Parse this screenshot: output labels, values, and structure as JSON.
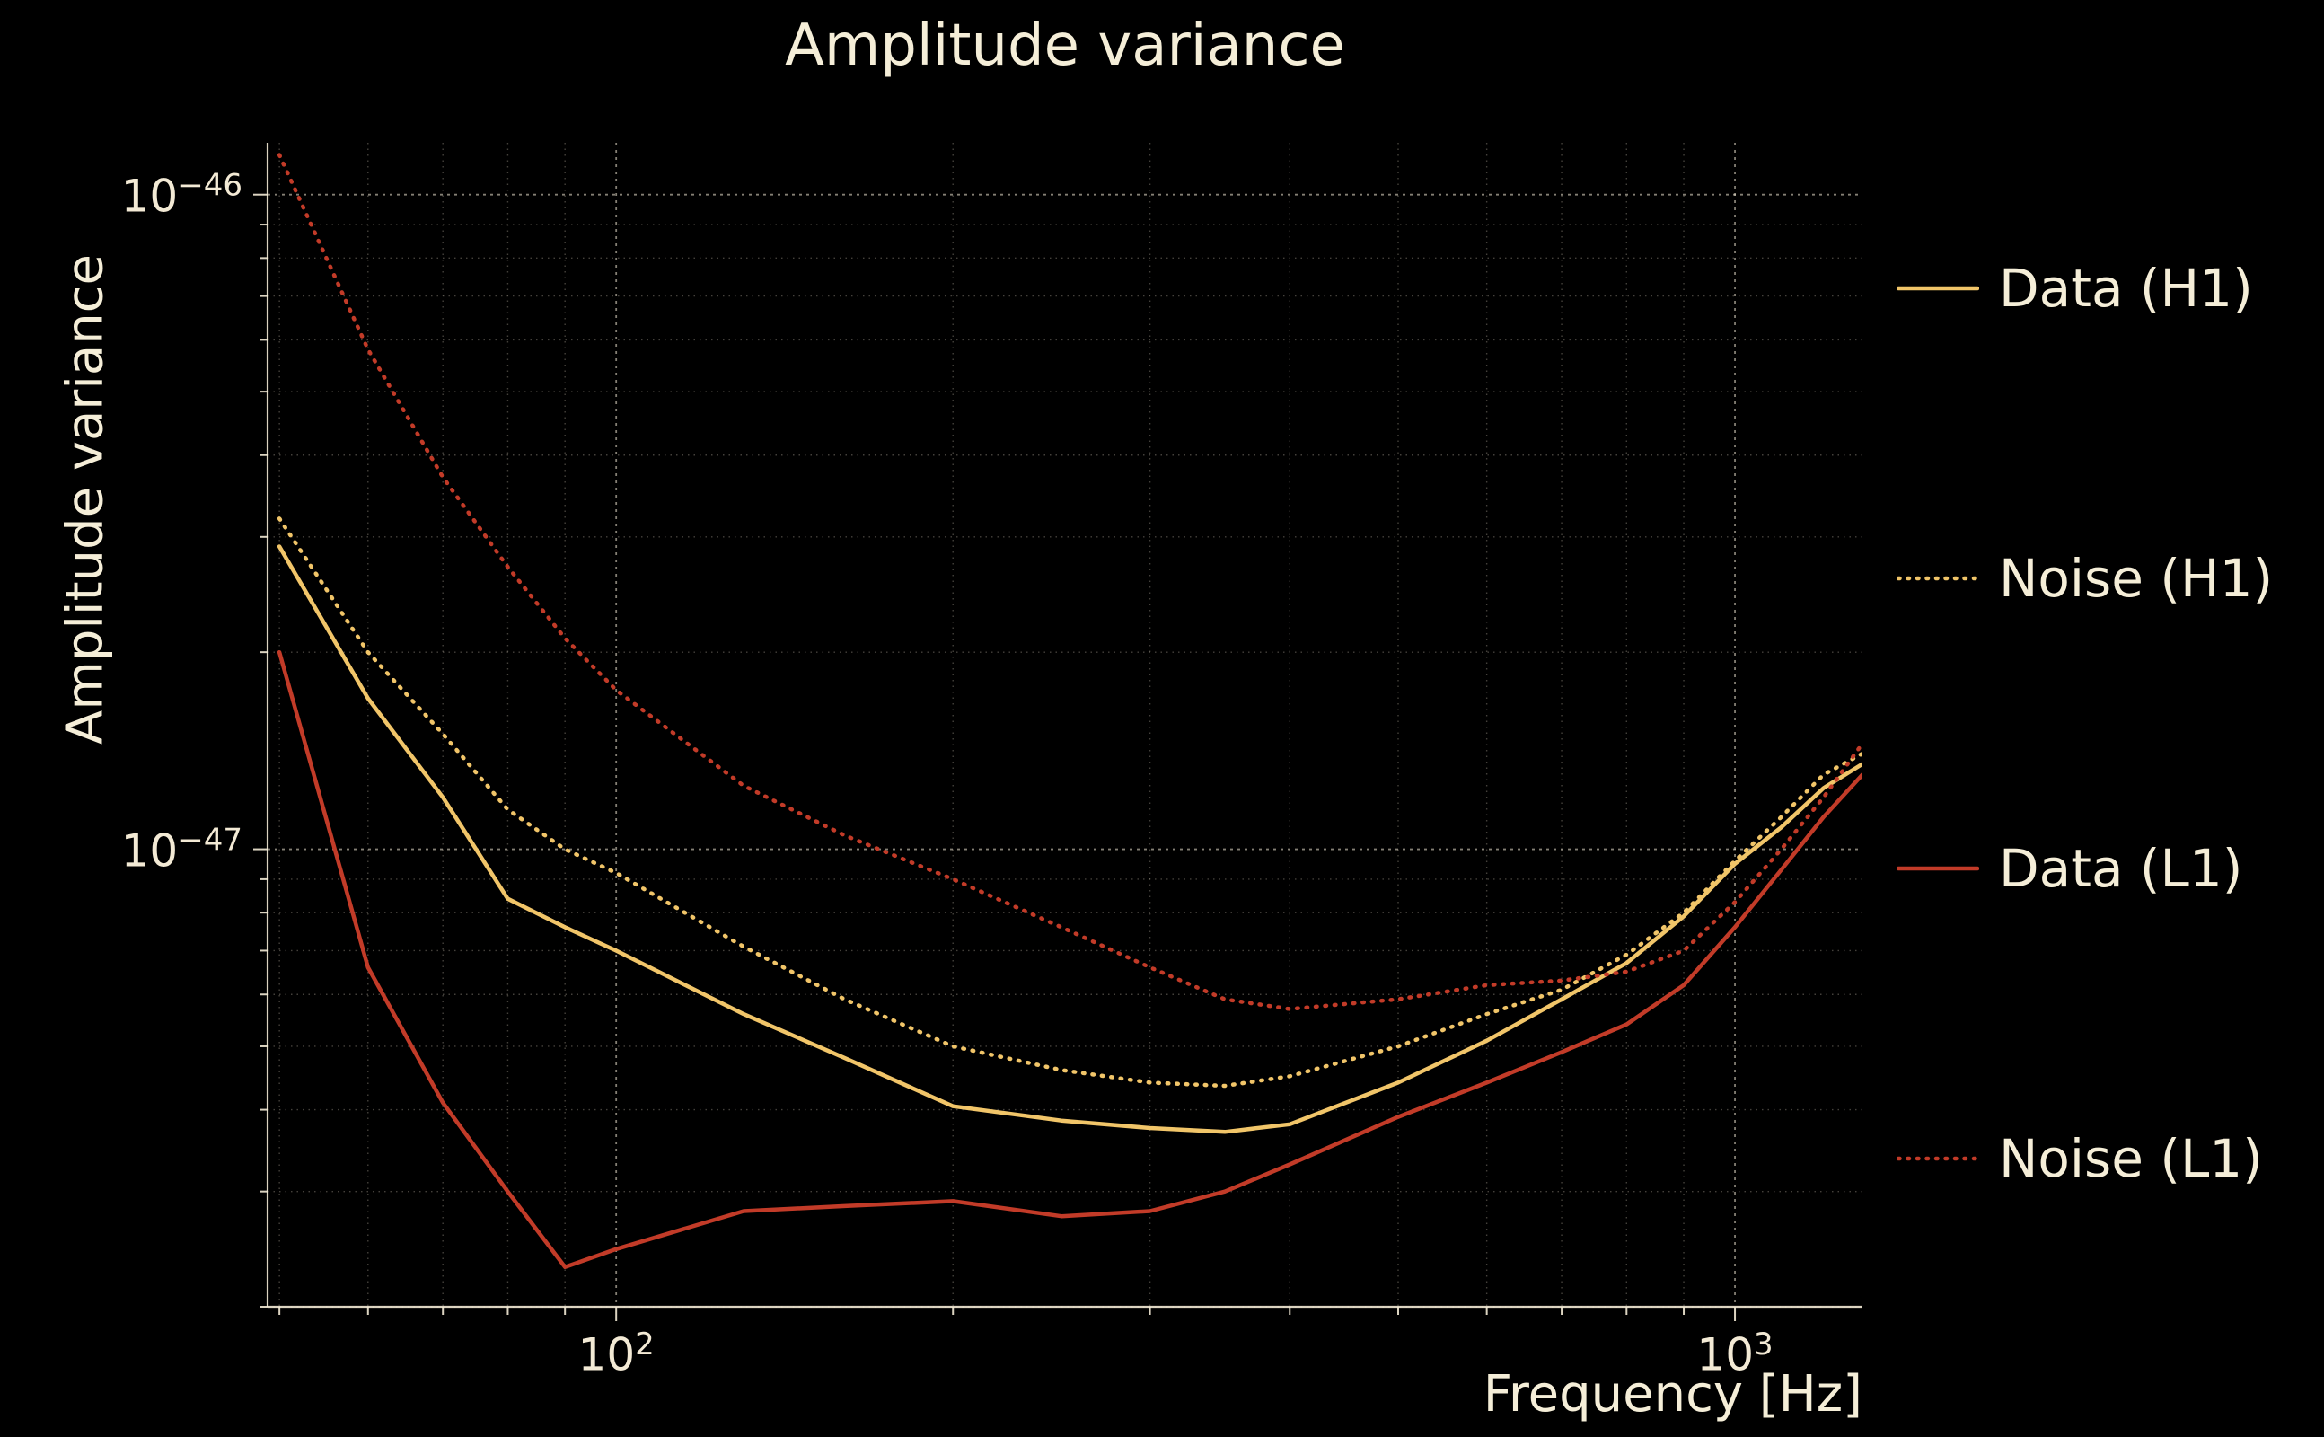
{
  "title": "Amplitude variance",
  "colors": {
    "background": "#000000",
    "text": "#f3ead5",
    "h1_series": "#f1c569",
    "l1_series": "#c23b28",
    "grid": "#f3ead5"
  },
  "chart_data": {
    "type": "line",
    "title": "Amplitude variance",
    "xlabel": "Frequency [Hz]",
    "ylabel": "Amplitude variance",
    "xscale": "log",
    "yscale": "log",
    "xlim": [
      48.8,
      1300
    ],
    "ylim": [
      2e-48,
      1.2e-46
    ],
    "grid": true,
    "legend_position": "right-outside",
    "x_ticks": [
      {
        "value": 100,
        "base": "10",
        "exponent": "2"
      },
      {
        "value": 1000,
        "base": "10",
        "exponent": "3"
      }
    ],
    "y_ticks": [
      {
        "value": 1e-46,
        "base": "10",
        "exponent": "−46"
      },
      {
        "value": 1e-47,
        "base": "10",
        "exponent": "−47"
      }
    ],
    "x": [
      50,
      60,
      70,
      80,
      90,
      100,
      130,
      160,
      200,
      250,
      300,
      350,
      400,
      500,
      600,
      700,
      800,
      900,
      1000,
      1100,
      1200,
      1300
    ],
    "series": [
      {
        "name": "Data (H1)",
        "color": "#f1c569",
        "linestyle": "solid",
        "values": [
          2.9e-47,
          1.7e-47,
          1.2e-47,
          8.4e-48,
          7.6e-48,
          7e-48,
          5.6e-48,
          4.8e-48,
          4.05e-48,
          3.85e-48,
          3.75e-48,
          3.7e-48,
          3.8e-48,
          4.4e-48,
          5.1e-48,
          5.9e-48,
          6.7e-48,
          7.9e-48,
          9.5e-48,
          1.08e-47,
          1.24e-47,
          1.35e-47
        ]
      },
      {
        "name": "Noise (H1)",
        "color": "#f1c569",
        "linestyle": "dotted",
        "values": [
          3.2e-47,
          2e-47,
          1.5e-47,
          1.15e-47,
          1e-47,
          9.2e-48,
          7.1e-48,
          5.9e-48,
          5e-48,
          4.6e-48,
          4.4e-48,
          4.35e-48,
          4.5e-48,
          5e-48,
          5.6e-48,
          6.1e-48,
          6.9e-48,
          8e-48,
          9.6e-48,
          1.12e-47,
          1.3e-47,
          1.4e-47
        ]
      },
      {
        "name": "Data (L1)",
        "color": "#c23b28",
        "linestyle": "solid",
        "values": [
          2e-47,
          6.6e-48,
          4.1e-48,
          3e-48,
          2.3e-48,
          2.45e-48,
          2.8e-48,
          2.85e-48,
          2.9e-48,
          2.75e-48,
          2.8e-48,
          3e-48,
          3.3e-48,
          3.9e-48,
          4.4e-48,
          4.9e-48,
          5.4e-48,
          6.2e-48,
          7.6e-48,
          9.3e-48,
          1.12e-47,
          1.3e-47
        ]
      },
      {
        "name": "Noise (L1)",
        "color": "#c23b28",
        "linestyle": "dotted",
        "values": [
          1.15e-46,
          5.8e-47,
          3.7e-47,
          2.7e-47,
          2.1e-47,
          1.75e-47,
          1.25e-47,
          1.05e-47,
          9e-48,
          7.6e-48,
          6.6e-48,
          5.9e-48,
          5.7e-48,
          5.9e-48,
          6.2e-48,
          6.3e-48,
          6.5e-48,
          7e-48,
          8.3e-48,
          1e-47,
          1.2e-47,
          1.45e-47
        ]
      }
    ]
  }
}
